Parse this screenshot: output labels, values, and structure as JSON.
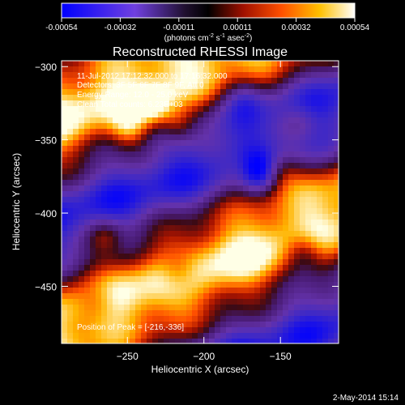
{
  "chart_data": {
    "type": "heatmap",
    "title": "Reconstructed RHESSI Image",
    "xlabel": "Heliocentric X (arcsec)",
    "ylabel": "Heliocentric Y (arcsec)",
    "xlim": [
      -293,
      -112
    ],
    "ylim": [
      -489,
      -296
    ],
    "xticks": [
      -250,
      -200,
      -150
    ],
    "yticks": [
      -300,
      -350,
      -400,
      -450
    ],
    "colorbar": {
      "label": "(photons cm",
      "label_sup1": "-2",
      "label_mid": " s",
      "label_sup2": "-1",
      "label_mid2": " asec",
      "label_sup3": "-2",
      "label_end": ")",
      "ticks": [
        "-0.00054",
        "-0.00032",
        "-0.00011",
        "0.00011",
        "0.00032",
        "0.00054"
      ],
      "range": [
        -0.00054,
        0.00054
      ],
      "colormap": [
        "#0000ff",
        "#8040ff",
        "#301040",
        "#000000",
        "#801000",
        "#ff4000",
        "#ffc000",
        "#ffffff"
      ]
    },
    "annotations": {
      "time": "11-Jul-2012 17:12:32.000 to 17:16:32.000",
      "detectors": "Detectors: 3F 5F 6F 7F 8F 9F, Att 0",
      "energy": "Energy Range: 12.0 - 25.0 keV",
      "clean": "Clean    Total counts: 6.23E+03",
      "peak": "Position of Peak = [-216,-336]"
    },
    "peak_position": [
      -216,
      -336
    ],
    "total_counts": 6230,
    "energy_range_kev": [
      12.0,
      25.0
    ]
  },
  "footer": {
    "date": "2-May-2014 15:14"
  }
}
